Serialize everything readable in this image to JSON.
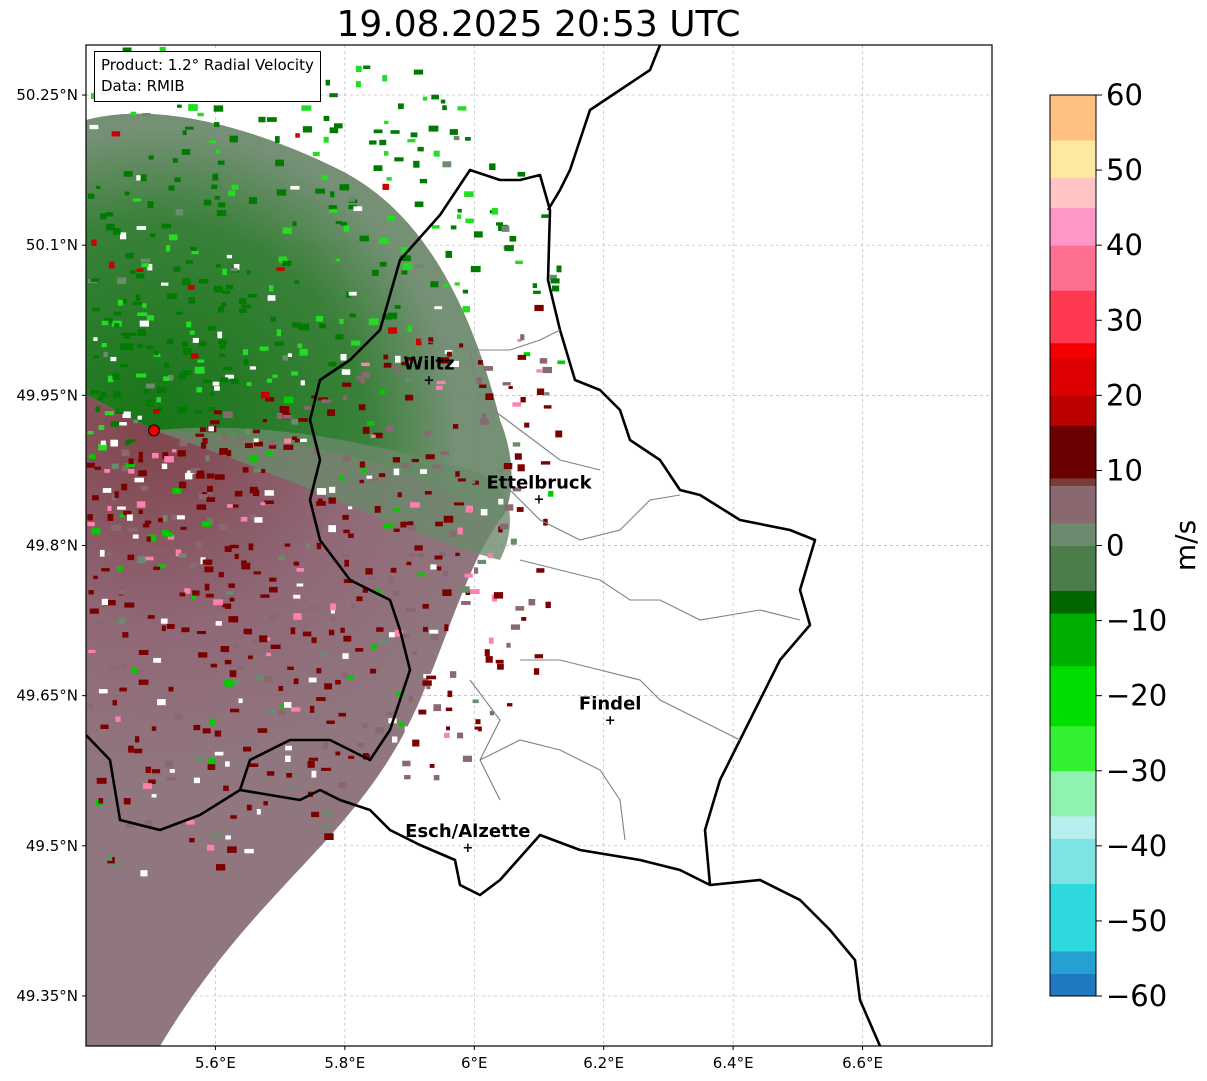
{
  "title": "19.08.2025 20:53 UTC",
  "info": {
    "product": "Product: 1.2° Radial Velocity",
    "data_source": "Data: RMIB"
  },
  "map": {
    "extent": {
      "lon": [
        5.4,
        6.8
      ],
      "lat": [
        49.3,
        50.3
      ]
    },
    "lat_ticks": [
      {
        "value": 49.35,
        "label": "49.35°N"
      },
      {
        "value": 49.5,
        "label": "49.5°N"
      },
      {
        "value": 49.65,
        "label": "49.65°N"
      },
      {
        "value": 49.8,
        "label": "49.8°N"
      },
      {
        "value": 49.95,
        "label": "49.95°N"
      },
      {
        "value": 50.1,
        "label": "50.1°N"
      },
      {
        "value": 50.25,
        "label": "50.25°N"
      }
    ],
    "lon_ticks": [
      {
        "value": 5.6,
        "label": "5.6°E"
      },
      {
        "value": 5.8,
        "label": "5.8°E"
      },
      {
        "value": 6.0,
        "label": "6°E"
      },
      {
        "value": 6.2,
        "label": "6.2°E"
      },
      {
        "value": 6.4,
        "label": "6.4°E"
      },
      {
        "value": 6.6,
        "label": "6.6°E"
      }
    ],
    "grid": true,
    "radar_site": {
      "lon": 5.505,
      "lat": 49.915,
      "color": "#e60000"
    },
    "cities": [
      {
        "name": "Wiltz",
        "lon": 5.93,
        "lat": 49.966
      },
      {
        "name": "Ettelbruck",
        "lon": 6.1,
        "lat": 49.847
      },
      {
        "name": "Findel",
        "lon": 6.21,
        "lat": 49.626
      },
      {
        "name": "Esch/Alzette",
        "lon": 5.99,
        "lat": 49.499
      }
    ]
  },
  "colorbar": {
    "label": "m/s",
    "min": -60,
    "max": 60,
    "ticks": [
      {
        "value": 60,
        "label": "60"
      },
      {
        "value": 50,
        "label": "50"
      },
      {
        "value": 40,
        "label": "40"
      },
      {
        "value": 30,
        "label": "30"
      },
      {
        "value": 20,
        "label": "20"
      },
      {
        "value": 10,
        "label": "10"
      },
      {
        "value": 0,
        "label": "0"
      },
      {
        "value": -10,
        "label": "−10"
      },
      {
        "value": -20,
        "label": "−20"
      },
      {
        "value": -30,
        "label": "−30"
      },
      {
        "value": -40,
        "label": "−40"
      },
      {
        "value": -50,
        "label": "−50"
      },
      {
        "value": -60,
        "label": "−60"
      }
    ],
    "color_stops": [
      {
        "v": -60,
        "c": "#1f78c1"
      },
      {
        "v": -57,
        "c": "#26a0d0"
      },
      {
        "v": -54,
        "c": "#2dd9dd"
      },
      {
        "v": -45,
        "c": "#7ee3e3"
      },
      {
        "v": -39,
        "c": "#b7eeee"
      },
      {
        "v": -36,
        "c": "#8ff2b0"
      },
      {
        "v": -30,
        "c": "#33f033"
      },
      {
        "v": -24,
        "c": "#00dd00"
      },
      {
        "v": -16,
        "c": "#00b000"
      },
      {
        "v": -9,
        "c": "#006600"
      },
      {
        "v": -6,
        "c": "#4a7d4a"
      },
      {
        "v": 0,
        "c": "#6e8a6e"
      },
      {
        "v": 3,
        "c": "#8a6870"
      },
      {
        "v": 8,
        "c": "#7a3b3b"
      },
      {
        "v": 9,
        "c": "#6a0000"
      },
      {
        "v": 16,
        "c": "#bb0000"
      },
      {
        "v": 20,
        "c": "#dd0000"
      },
      {
        "v": 25,
        "c": "#f50000"
      },
      {
        "v": 27,
        "c": "#ff3a50"
      },
      {
        "v": 34,
        "c": "#ff7090"
      },
      {
        "v": 40,
        "c": "#ff96c8"
      },
      {
        "v": 45,
        "c": "#ffc4c4"
      },
      {
        "v": 49,
        "c": "#ffe8a0"
      },
      {
        "v": 54,
        "c": "#ffc080"
      },
      {
        "v": 60,
        "c": "#ff9f55"
      }
    ]
  },
  "colors": {
    "outbound_far": "#7a3f48",
    "outbound_near": "#8a6872",
    "inbound_zero": "#6a8a6a",
    "inbound_dark": "#007a00",
    "inbound_bright": "#22dd22",
    "folded_red": "#7b0000",
    "border": "#000000",
    "canton": "#808080"
  }
}
